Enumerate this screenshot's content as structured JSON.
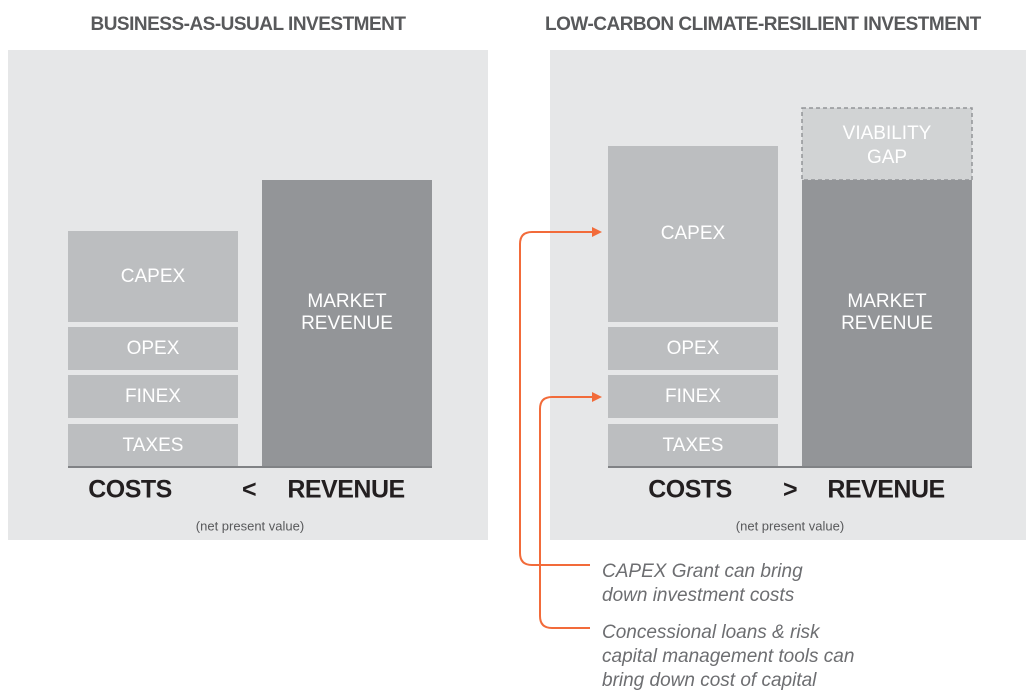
{
  "panels": [
    {
      "title": "BUSINESS-AS-USUAL INVESTMENT",
      "costs": [
        "CAPEX",
        "OPEX",
        "FINEX",
        "TAXES"
      ],
      "revenue": [
        "MARKET",
        "REVENUE"
      ],
      "costs_label": "COSTS",
      "comparison": "<",
      "revenue_label": "REVENUE",
      "note": "(net present value)"
    },
    {
      "title": "LOW-CARBON CLIMATE-RESILIENT INVESTMENT",
      "costs": [
        "CAPEX",
        "OPEX",
        "FINEX",
        "TAXES"
      ],
      "revenue": [
        "MARKET",
        "REVENUE"
      ],
      "gap": [
        "VIABILITY",
        "GAP"
      ],
      "costs_label": "COSTS",
      "comparison": ">",
      "revenue_label": "REVENUE",
      "note": "(net present value)"
    }
  ],
  "annotations": [
    [
      "CAPEX Grant can bring",
      "down investment costs"
    ],
    [
      "Concessional loans & risk",
      "capital management tools can",
      "bring down cost of capital"
    ]
  ]
}
